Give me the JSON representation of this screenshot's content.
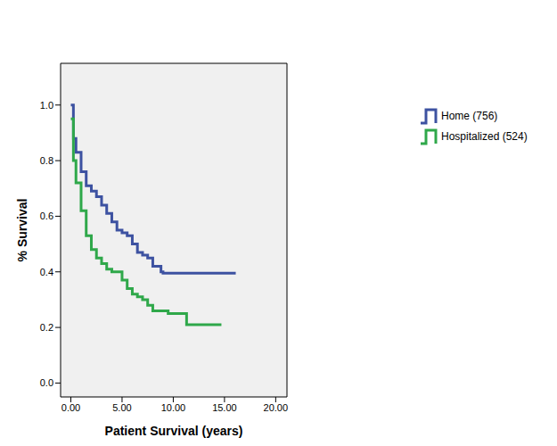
{
  "chart_data": {
    "type": "line",
    "x_label": "Patient Survival (years)",
    "y_label": "% Survival",
    "x": [
      0,
      0.25,
      0.5,
      1,
      1.5,
      2,
      2.5,
      3,
      3.5,
      4,
      4.5,
      5,
      5.5,
      6,
      6.5,
      7,
      7.5,
      8,
      8.8,
      9,
      9.5,
      10,
      11.3,
      14.7,
      16.1
    ],
    "series": [
      {
        "name": "Home (756)",
        "color": "#3d52a1",
        "values": [
          1.0,
          0.88,
          0.83,
          0.76,
          0.71,
          0.69,
          0.67,
          0.64,
          0.61,
          0.58,
          0.55,
          0.54,
          0.53,
          0.5,
          0.47,
          0.46,
          0.45,
          0.42,
          0.4,
          0.395,
          0.395,
          0.395,
          0.395,
          0.395,
          0.395
        ]
      },
      {
        "name": "Hospitalized (524)",
        "color": "#2fa84a",
        "values": [
          0.95,
          0.8,
          0.72,
          0.62,
          0.53,
          0.48,
          0.45,
          0.43,
          0.41,
          0.4,
          0.4,
          0.37,
          0.34,
          0.32,
          0.31,
          0.3,
          0.28,
          0.26,
          0.26,
          0.26,
          0.25,
          0.25,
          0.21,
          0.21,
          null
        ]
      }
    ],
    "xlim": [
      -1,
      21.1
    ],
    "ylim": [
      -0.05,
      1.15
    ],
    "xticks": [
      {
        "value": 0,
        "label": "0.00"
      },
      {
        "value": 5,
        "label": "5.00"
      },
      {
        "value": 10,
        "label": "10.00"
      },
      {
        "value": 15,
        "label": "15.00"
      },
      {
        "value": 20,
        "label": "20.00"
      }
    ],
    "yticks": [
      {
        "value": 0,
        "label": "0.0"
      },
      {
        "value": 0.2,
        "label": "0.2"
      },
      {
        "value": 0.4,
        "label": "0.4"
      },
      {
        "value": 0.6,
        "label": "0.6"
      },
      {
        "value": 0.8,
        "label": "0.8"
      },
      {
        "value": 1,
        "label": "1.0"
      }
    ],
    "grid": false,
    "legend": "right",
    "line_style": "step"
  }
}
